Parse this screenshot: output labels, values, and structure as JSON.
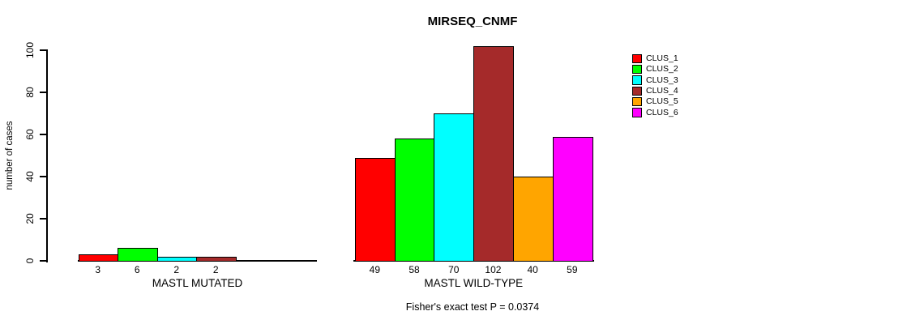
{
  "chart_data": {
    "type": "bar",
    "title": "MIRSEQ_CNMF",
    "ylabel": "number of cases",
    "xlabel": "",
    "ylim": [
      0,
      100
    ],
    "yticks": [
      0,
      20,
      40,
      60,
      80,
      100
    ],
    "grid": false,
    "legend_position": "right-outside",
    "legend": [
      {
        "label": "CLUS_1",
        "color": "#FF0000"
      },
      {
        "label": "CLUS_2",
        "color": "#00FF00"
      },
      {
        "label": "CLUS_3",
        "color": "#00FFFF"
      },
      {
        "label": "CLUS_4",
        "color": "#A52A2A"
      },
      {
        "label": "CLUS_5",
        "color": "#FFA500"
      },
      {
        "label": "CLUS_6",
        "color": "#FF00FF"
      }
    ],
    "categories": [
      "CLUS_1",
      "CLUS_2",
      "CLUS_3",
      "CLUS_4",
      "CLUS_5",
      "CLUS_6"
    ],
    "groups": [
      {
        "label": "MASTL MUTATED",
        "values": [
          3,
          6,
          2,
          2,
          0,
          0
        ],
        "value_labels": [
          "3",
          "6",
          "2",
          "2",
          "",
          ""
        ]
      },
      {
        "label": "MASTL WILD-TYPE",
        "values": [
          49,
          58,
          70,
          102,
          40,
          59
        ],
        "value_labels": [
          "49",
          "58",
          "70",
          "102",
          "40",
          "59"
        ]
      }
    ],
    "annotation": "Fisher's exact test P = 0.0374"
  }
}
